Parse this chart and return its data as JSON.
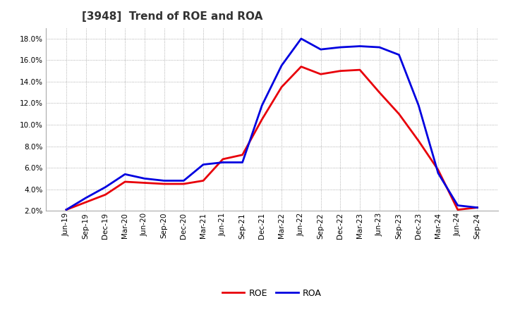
{
  "title": "[3948]  Trend of ROE and ROA",
  "x_labels": [
    "Jun-19",
    "Sep-19",
    "Dec-19",
    "Mar-20",
    "Jun-20",
    "Sep-20",
    "Dec-20",
    "Mar-21",
    "Jun-21",
    "Sep-21",
    "Dec-21",
    "Mar-22",
    "Jun-22",
    "Sep-22",
    "Dec-22",
    "Mar-23",
    "Jun-23",
    "Sep-23",
    "Dec-23",
    "Mar-24",
    "Jun-24",
    "Sep-24"
  ],
  "roe": [
    2.1,
    2.8,
    3.5,
    4.7,
    4.6,
    4.5,
    4.5,
    4.8,
    6.8,
    7.2,
    10.5,
    13.5,
    15.4,
    14.7,
    15.0,
    15.1,
    13.0,
    11.0,
    8.5,
    5.8,
    2.1,
    2.3
  ],
  "roa": [
    2.1,
    3.2,
    4.2,
    5.4,
    5.0,
    4.8,
    4.8,
    6.3,
    6.5,
    6.5,
    11.8,
    15.5,
    18.0,
    17.0,
    17.2,
    17.3,
    17.2,
    16.5,
    11.8,
    5.5,
    2.5,
    2.3
  ],
  "roe_color": "#e8000a",
  "roa_color": "#0000e0",
  "background_color": "#ffffff",
  "grid_color": "#999999",
  "ylim": [
    2.0,
    19.0
  ],
  "yticks": [
    2.0,
    4.0,
    6.0,
    8.0,
    10.0,
    12.0,
    14.0,
    16.0,
    18.0
  ],
  "line_width": 2.0,
  "title_fontsize": 11,
  "tick_fontsize": 7.5,
  "legend_fontsize": 9
}
